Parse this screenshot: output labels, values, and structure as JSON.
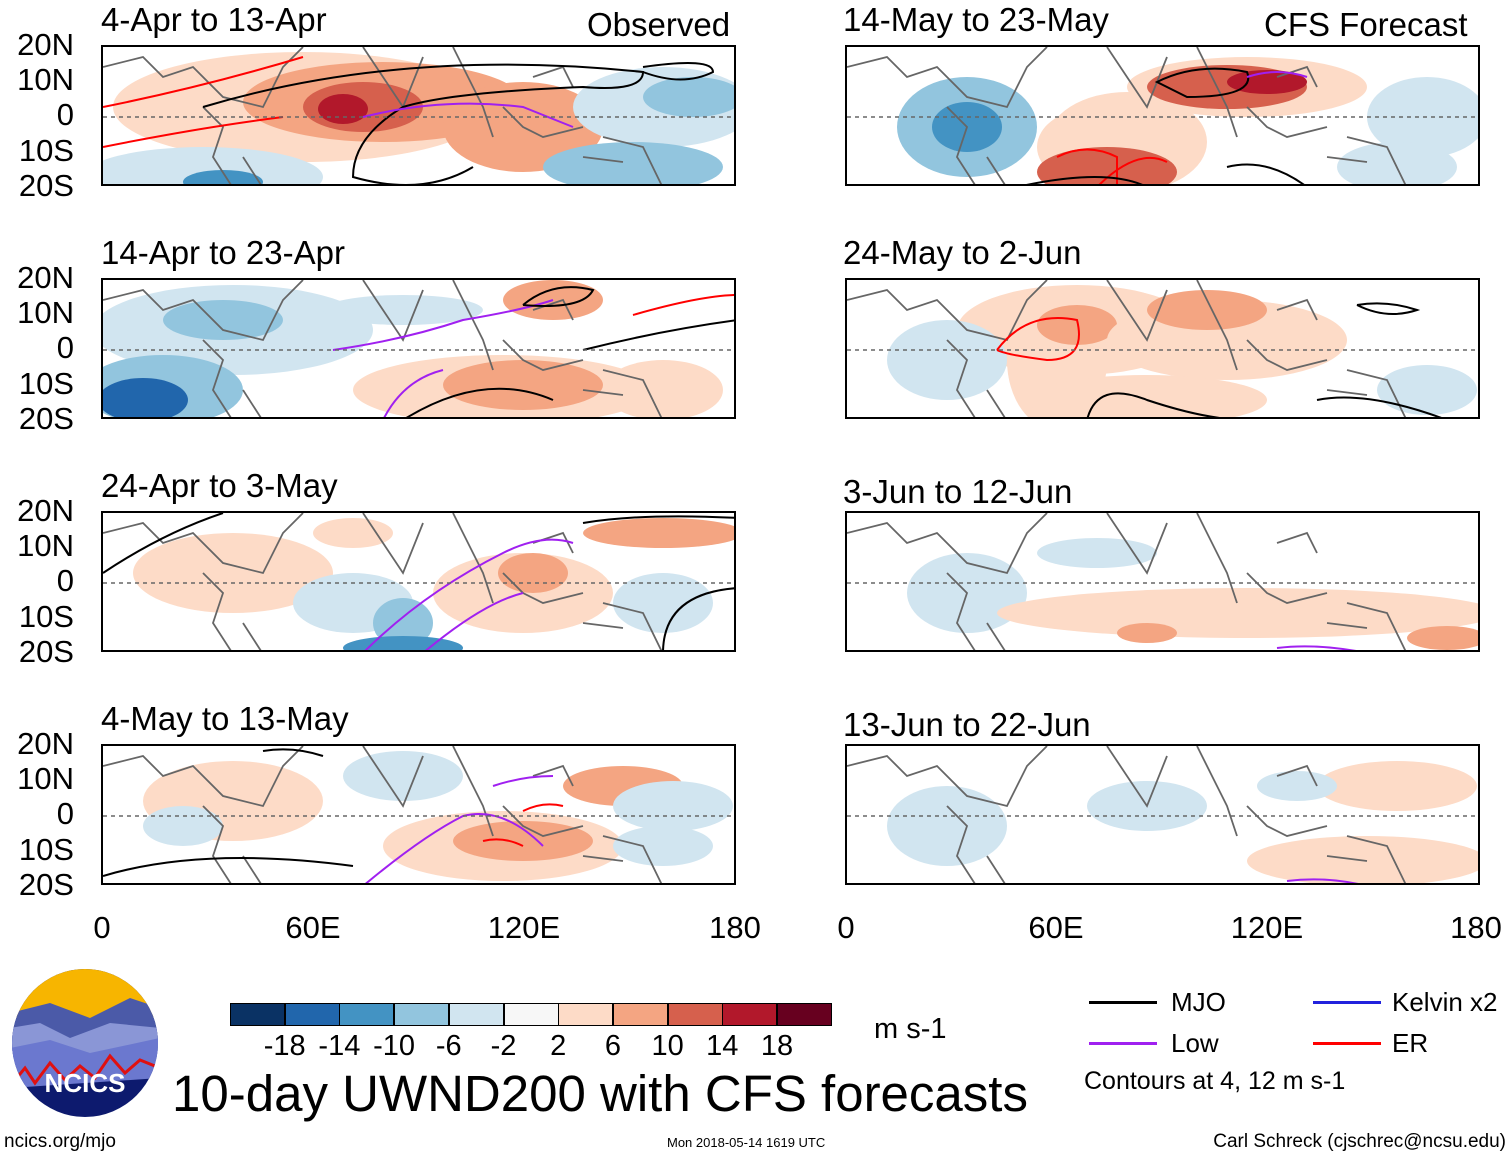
{
  "labels": {
    "observed": "Observed",
    "forecast": "CFS Forecast"
  },
  "panels": [
    {
      "title": "4-Apr to 13-Apr",
      "type": "observed"
    },
    {
      "title": "14-Apr to 23-Apr",
      "type": "observed"
    },
    {
      "title": "24-Apr to 3-May",
      "type": "observed"
    },
    {
      "title": "4-May to 13-May",
      "type": "observed"
    },
    {
      "title": "14-May to 23-May",
      "type": "forecast"
    },
    {
      "title": "24-May to 2-Jun",
      "type": "forecast"
    },
    {
      "title": "3-Jun to 12-Jun",
      "type": "forecast"
    },
    {
      "title": "13-Jun to 22-Jun",
      "type": "forecast"
    }
  ],
  "chart_data": {
    "type": "heatmap",
    "title": "10-day UWND200 with CFS forecasts",
    "xlabel": "",
    "ylabel": "",
    "x_ticks": [
      "0",
      "60E",
      "120E",
      "180"
    ],
    "y_ticks": [
      "20N",
      "10N",
      "0",
      "10S",
      "20S"
    ],
    "xlim": [
      0,
      180
    ],
    "ylim": [
      -20,
      20
    ],
    "colorbar": {
      "ticks": [
        "-18",
        "-14",
        "-10",
        "-6",
        "-2",
        "2",
        "6",
        "10",
        "14",
        "18"
      ],
      "units": "m s-1",
      "colors": [
        "#0a3264",
        "#2166ac",
        "#4393c3",
        "#92c5de",
        "#d1e5f0",
        "#f7f7f7",
        "#fddbc7",
        "#f4a582",
        "#d6604d",
        "#b2182b",
        "#67001f"
      ]
    },
    "legend": [
      {
        "name": "MJO",
        "color": "#000000"
      },
      {
        "name": "Kelvin x2",
        "color": "#2222dd"
      },
      {
        "name": "Low",
        "color": "#a020f0"
      },
      {
        "name": "ER",
        "color": "#ff0000"
      }
    ],
    "contour_note": "Contours at 4, 12 m s-1"
  },
  "footer": {
    "logo_text": "NCICS",
    "url": "ncics.org/mjo",
    "timestamp": "Mon 2018-05-14 1619 UTC",
    "author": "Carl Schreck (cjschrec@ncsu.edu)"
  }
}
